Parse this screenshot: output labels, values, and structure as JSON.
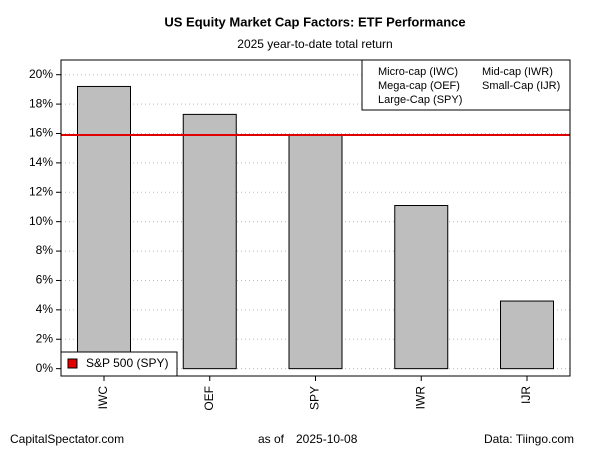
{
  "chart_data": {
    "type": "bar",
    "title": "US Equity Market Cap Factors: ETF Performance",
    "subtitle": "2025 year-to-date total return",
    "categories": [
      "IWC",
      "OEF",
      "SPY",
      "IWR",
      "IJR"
    ],
    "values": [
      19.2,
      17.3,
      15.9,
      11.1,
      4.6
    ],
    "color": "#bebebe",
    "ylim": [
      -0.5,
      21
    ],
    "yticks": [
      {
        "value": 0,
        "label": "0%"
      },
      {
        "value": 2,
        "label": "2%"
      },
      {
        "value": 4,
        "label": "4%"
      },
      {
        "value": 6,
        "label": "6%"
      },
      {
        "value": 8,
        "label": "8%"
      },
      {
        "value": 10,
        "label": "10%"
      },
      {
        "value": 12,
        "label": "12%"
      },
      {
        "value": 14,
        "label": "14%"
      },
      {
        "value": 16,
        "label": "16%"
      },
      {
        "value": 18,
        "label": "18%"
      },
      {
        "value": 20,
        "label": "20%"
      }
    ],
    "grid": true,
    "reference_line": {
      "name": "S&P 500 (SPY)",
      "value": 15.9,
      "color": "#e00000"
    },
    "legend_notes": [
      "Micro-cap (IWC)",
      "Mid-cap (IWR)",
      "Mega-cap (OEF)",
      "Small-Cap (IJR)",
      "Large-Cap (SPY)"
    ],
    "footer": {
      "left": "CapitalSpectator.com",
      "center_label": "as of",
      "date": "2025-10-08",
      "right": "Data: Tiingo.com"
    }
  }
}
